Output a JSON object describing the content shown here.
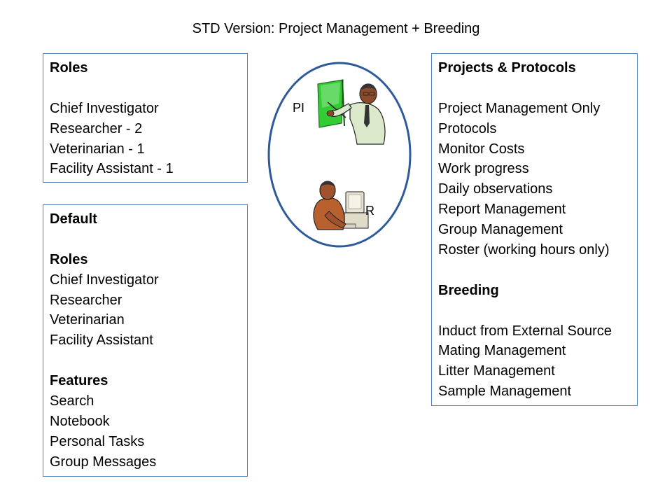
{
  "slide": {
    "title": "STD Version: Project Management + Breeding"
  },
  "roles_box": {
    "heading": "Roles",
    "items": [
      "Chief Investigator",
      "Researcher - 2",
      "Veterinarian - 1",
      "Facility Assistant - 1"
    ]
  },
  "default_box": {
    "heading": "Default",
    "roles_heading": "Roles",
    "roles": [
      "Chief Investigator",
      "Researcher",
      "Veterinarian",
      "Facility Assistant"
    ],
    "features_heading": "Features",
    "features": [
      "Search",
      "Notebook",
      "Personal Tasks",
      "Group Messages"
    ]
  },
  "projects_box": {
    "heading": "Projects & Protocols",
    "items": [
      "Project Management Only",
      "Protocols",
      "Monitor Costs",
      "Work progress",
      "Daily observations",
      "Report Management",
      "Group Management",
      "Roster (working hours only)"
    ],
    "breeding_heading": "Breeding",
    "breeding_items": [
      "Induct from External Source",
      "Mating Management",
      "Litter Management",
      "Sample Management"
    ]
  },
  "illustration": {
    "pi_label": "PI",
    "r_label": "R",
    "pi_icon": "presenter-clipart-icon",
    "r_icon": "computer-user-clipart-icon",
    "colors": {
      "border": "#4f81bd",
      "ellipse": "#2e5a9a",
      "board": "#33cc33",
      "suit": "#d8e8c8",
      "skin": "#a0522d",
      "shirt": "#b8602e"
    }
  }
}
